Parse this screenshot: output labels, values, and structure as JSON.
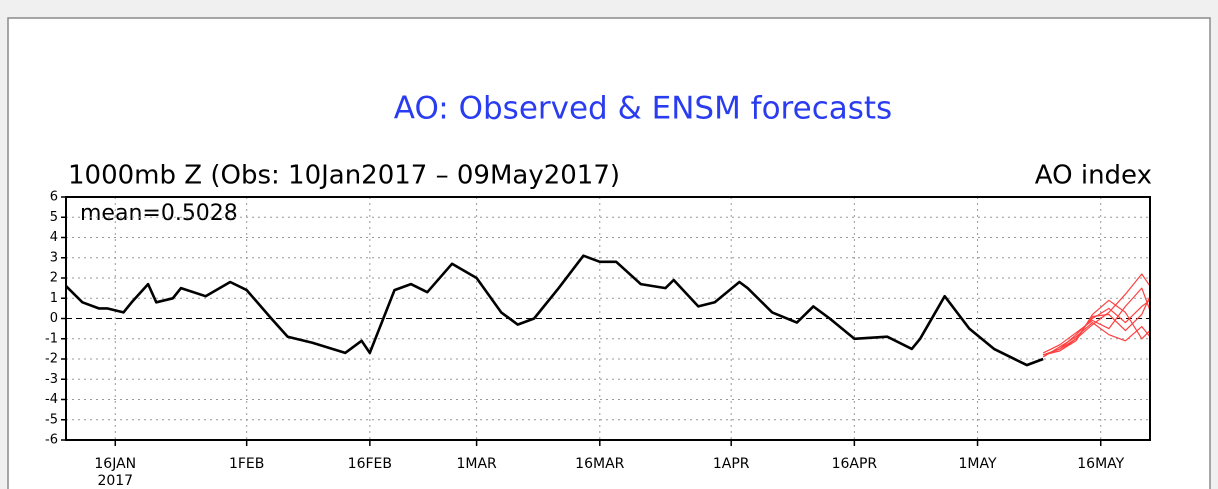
{
  "chart_data": {
    "type": "line",
    "title": "AO: Observed & ENSM forecasts",
    "subtitle": "1000mb Z (Obs: 10Jan2017 – 09May2017)",
    "subtitle_right": "AO index",
    "annotation": "mean=0.5028",
    "xlim": [
      "2017-01-10",
      "2017-05-22"
    ],
    "xticks": [
      {
        "value": "2017-01-16",
        "label": "16JAN",
        "sublabel": "2017"
      },
      {
        "value": "2017-02-01",
        "label": "1FEB"
      },
      {
        "value": "2017-02-16",
        "label": "16FEB"
      },
      {
        "value": "2017-03-01",
        "label": "1MAR"
      },
      {
        "value": "2017-03-16",
        "label": "16MAR"
      },
      {
        "value": "2017-04-01",
        "label": "1APR"
      },
      {
        "value": "2017-04-16",
        "label": "16APR"
      },
      {
        "value": "2017-05-01",
        "label": "1MAY"
      },
      {
        "value": "2017-05-16",
        "label": "16MAY"
      }
    ],
    "ylim": [
      -6,
      6
    ],
    "yticks": [
      -6,
      -5,
      -4,
      -3,
      -2,
      -1,
      0,
      1,
      2,
      3,
      4,
      5,
      6
    ],
    "grid": true,
    "series": [
      {
        "color": "#000000",
        "x": [
          "2017-01-10",
          "2017-01-12",
          "2017-01-14",
          "2017-01-15",
          "2017-01-17",
          "2017-01-18",
          "2017-01-20",
          "2017-01-21",
          "2017-01-23",
          "2017-01-24",
          "2017-01-27",
          "2017-01-30",
          "2017-02-01",
          "2017-02-04",
          "2017-02-06",
          "2017-02-09",
          "2017-02-13",
          "2017-02-15",
          "2017-02-16",
          "2017-02-19",
          "2017-02-21",
          "2017-02-23",
          "2017-02-26",
          "2017-03-01",
          "2017-03-04",
          "2017-03-06",
          "2017-03-08",
          "2017-03-11",
          "2017-03-14",
          "2017-03-16",
          "2017-03-18",
          "2017-03-21",
          "2017-03-24",
          "2017-03-25",
          "2017-03-28",
          "2017-03-30",
          "2017-04-02",
          "2017-04-03",
          "2017-04-06",
          "2017-04-09",
          "2017-04-11",
          "2017-04-13",
          "2017-04-16",
          "2017-04-20",
          "2017-04-23",
          "2017-04-24",
          "2017-04-27",
          "2017-04-30",
          "2017-05-03",
          "2017-05-07",
          "2017-05-09"
        ],
        "values": [
          1.6,
          0.8,
          0.5,
          0.5,
          0.3,
          0.8,
          1.7,
          0.8,
          1.0,
          1.5,
          1.1,
          1.8,
          1.4,
          0.0,
          -0.9,
          -1.2,
          -1.7,
          -1.1,
          -1.7,
          1.4,
          1.7,
          1.3,
          2.7,
          2.0,
          0.3,
          -0.3,
          0.0,
          1.5,
          3.1,
          2.8,
          2.8,
          1.7,
          1.5,
          1.9,
          0.6,
          0.8,
          1.8,
          1.5,
          0.3,
          -0.2,
          0.6,
          0.0,
          -1.0,
          -0.9,
          -1.5,
          -1.0,
          1.1,
          -0.5,
          -1.5,
          -2.3,
          -2.0
        ]
      },
      {
        "color": "#ff4040",
        "x": [
          "2017-05-09",
          "2017-05-11",
          "2017-05-13",
          "2017-05-15",
          "2017-05-17",
          "2017-05-19",
          "2017-05-21",
          "2017-05-22"
        ],
        "values": [
          -1.8,
          -1.6,
          -1.0,
          -0.3,
          0.3,
          1.2,
          2.2,
          1.6
        ]
      },
      {
        "color": "#ff4040",
        "x": [
          "2017-05-09",
          "2017-05-11",
          "2017-05-13",
          "2017-05-15",
          "2017-05-17",
          "2017-05-19",
          "2017-05-21",
          "2017-05-22"
        ],
        "values": [
          -1.8,
          -1.5,
          -0.8,
          0.0,
          0.5,
          -0.2,
          0.6,
          0.9
        ]
      },
      {
        "color": "#ff4040",
        "x": [
          "2017-05-09",
          "2017-05-11",
          "2017-05-13",
          "2017-05-15",
          "2017-05-17",
          "2017-05-19",
          "2017-05-21",
          "2017-05-22"
        ],
        "values": [
          -1.9,
          -1.4,
          -0.9,
          -0.2,
          -0.8,
          -1.1,
          -0.4,
          -0.9
        ]
      },
      {
        "color": "#ff4040",
        "x": [
          "2017-05-09",
          "2017-05-11",
          "2017-05-13",
          "2017-05-15",
          "2017-05-17",
          "2017-05-19",
          "2017-05-21",
          "2017-05-22"
        ],
        "values": [
          -1.8,
          -1.6,
          -1.1,
          0.2,
          0.9,
          0.3,
          -1.0,
          -0.6
        ]
      },
      {
        "color": "#ff4040",
        "x": [
          "2017-05-09",
          "2017-05-11",
          "2017-05-13",
          "2017-05-15",
          "2017-05-17",
          "2017-05-19",
          "2017-05-21",
          "2017-05-22"
        ],
        "values": [
          -1.7,
          -1.3,
          -0.7,
          -0.1,
          -0.5,
          0.6,
          1.5,
          0.4
        ]
      },
      {
        "color": "#ff4040",
        "x": [
          "2017-05-09",
          "2017-05-11",
          "2017-05-13",
          "2017-05-15",
          "2017-05-17",
          "2017-05-19",
          "2017-05-21",
          "2017-05-22"
        ],
        "values": [
          -1.8,
          -1.5,
          -1.0,
          0.1,
          0.2,
          -0.6,
          0.2,
          1.1
        ]
      }
    ]
  }
}
